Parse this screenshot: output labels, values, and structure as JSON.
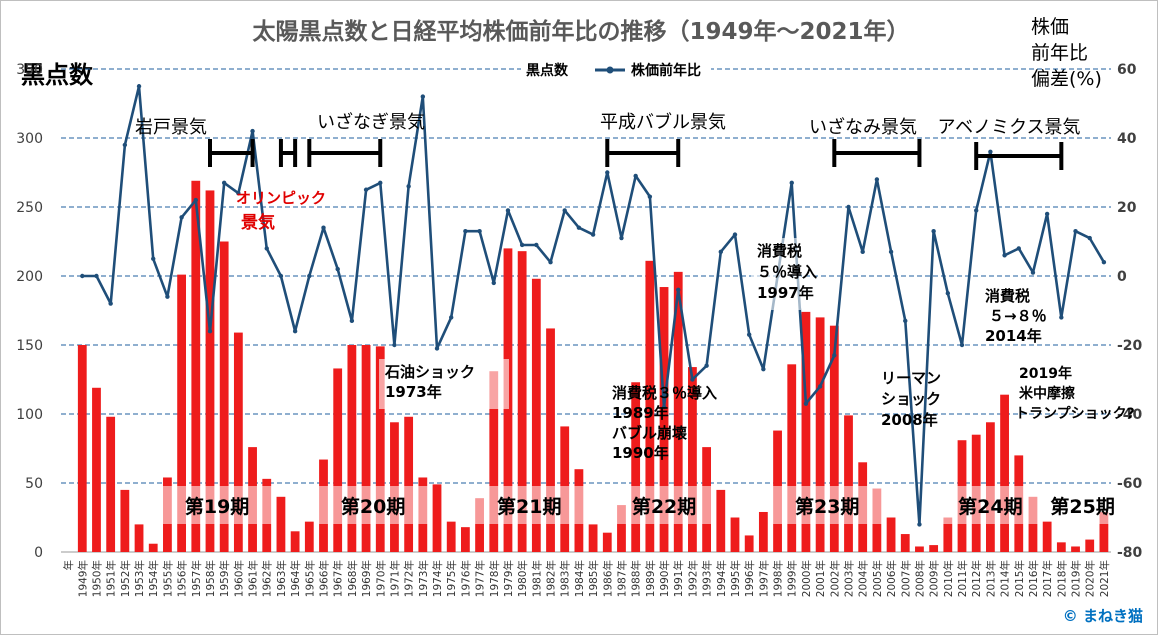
{
  "chart_data": {
    "type": "bar+line",
    "title": "太陽黒点数と日経平均株価前年比の推移（1949年～2021年）",
    "left_axis_label": "黒点数",
    "right_axis_label_lines": [
      "株価",
      "前年比",
      "偏差(%)"
    ],
    "left_ticks": [
      "0",
      "50",
      "100",
      "150",
      "200",
      "250",
      "300",
      "350"
    ],
    "right_ticks": [
      "-80",
      "-60",
      "-40",
      "-20",
      "0",
      "20",
      "40",
      "60"
    ],
    "ylim_left": [
      0,
      350
    ],
    "ylim_right": [
      -80,
      60
    ],
    "x_first_label": "年",
    "years": [
      1949,
      1950,
      1951,
      1952,
      1953,
      1954,
      1955,
      1956,
      1957,
      1958,
      1959,
      1960,
      1961,
      1962,
      1963,
      1964,
      1965,
      1966,
      1967,
      1968,
      1969,
      1970,
      1971,
      1972,
      1973,
      1974,
      1975,
      1976,
      1977,
      1978,
      1979,
      1980,
      1981,
      1982,
      1983,
      1984,
      1985,
      1986,
      1987,
      1988,
      1989,
      1990,
      1991,
      1992,
      1993,
      1994,
      1995,
      1996,
      1997,
      1998,
      1999,
      2000,
      2001,
      2002,
      2003,
      2004,
      2005,
      2006,
      2007,
      2008,
      2009,
      2010,
      2011,
      2012,
      2013,
      2014,
      2015,
      2016,
      2017,
      2018,
      2019,
      2020,
      2021
    ],
    "year_suffix": "年",
    "legend": {
      "sunspots": "黒点数",
      "stock": "株価前年比"
    },
    "series": [
      {
        "name": "黒点数",
        "color": "#ee1c1c",
        "values": [
          150,
          119,
          98,
          45,
          20,
          6,
          54,
          201,
          269,
          262,
          225,
          159,
          76,
          53,
          40,
          15,
          22,
          67,
          133,
          150,
          150,
          149,
          94,
          98,
          54,
          49,
          22,
          18,
          39,
          131,
          220,
          218,
          198,
          162,
          91,
          60,
          20,
          14,
          34,
          123,
          211,
          192,
          203,
          134,
          76,
          45,
          25,
          12,
          29,
          88,
          136,
          174,
          170,
          164,
          99,
          65,
          46,
          25,
          13,
          4,
          5,
          25,
          81,
          85,
          94,
          114,
          70,
          40,
          22,
          7,
          4,
          9,
          29
        ]
      },
      {
        "name": "株価前年比",
        "color": "#1f4e79",
        "values": [
          0,
          0,
          -8,
          38,
          55,
          5,
          -6,
          17,
          22,
          -16,
          27,
          24,
          42,
          8,
          0,
          -16,
          0,
          14,
          2,
          -13,
          25,
          27,
          -20,
          26,
          52,
          -21,
          -12,
          13,
          13,
          -2,
          19,
          9,
          9,
          4,
          19,
          14,
          12,
          30,
          11,
          29,
          23,
          -38,
          -4,
          -30,
          -26,
          7,
          12,
          -17,
          -27,
          0,
          27,
          -37,
          -32,
          -23,
          20,
          7,
          28,
          7,
          -13,
          -72,
          13,
          -5,
          -20,
          19,
          36,
          6,
          8,
          1,
          18,
          -12,
          13,
          11,
          4
        ]
      }
    ],
    "booms": [
      {
        "label": "岩戸景気",
        "from": 1958,
        "to": 1961
      },
      {
        "label": "",
        "from": 1963,
        "to": 1964
      },
      {
        "label": "いざなぎ景気",
        "from": 1965,
        "to": 1970
      },
      {
        "label": "平成バブル景気",
        "from": 1986,
        "to": 1991
      },
      {
        "label": "いざなみ景気",
        "from": 2002,
        "to": 2008
      },
      {
        "label": "アベノミクス景気",
        "from": 2012,
        "to": 2018
      }
    ],
    "olympic_label": [
      "オリンピック",
      "景気"
    ],
    "annotations": [
      {
        "lines": [
          "石油ショック",
          "1973年"
        ]
      },
      {
        "lines": [
          "消費税３％導入",
          "1989年",
          "バブル崩壊",
          "1990年"
        ]
      },
      {
        "lines": [
          "消費税",
          "５％導入",
          "1997年"
        ]
      },
      {
        "lines": [
          "リーマン",
          "ショック",
          "2008年"
        ]
      },
      {
        "lines": [
          "消費税",
          "５→８％",
          "2014年"
        ]
      },
      {
        "lines": [
          "2019年",
          "米中摩擦",
          "トランプショック?"
        ]
      }
    ],
    "cycles": [
      "第19期",
      "第20期",
      "第21期",
      "第22期",
      "第23期",
      "第24期",
      "第25期"
    ],
    "copyright": "© まねき猫",
    "grid": "horizontal dashed"
  }
}
